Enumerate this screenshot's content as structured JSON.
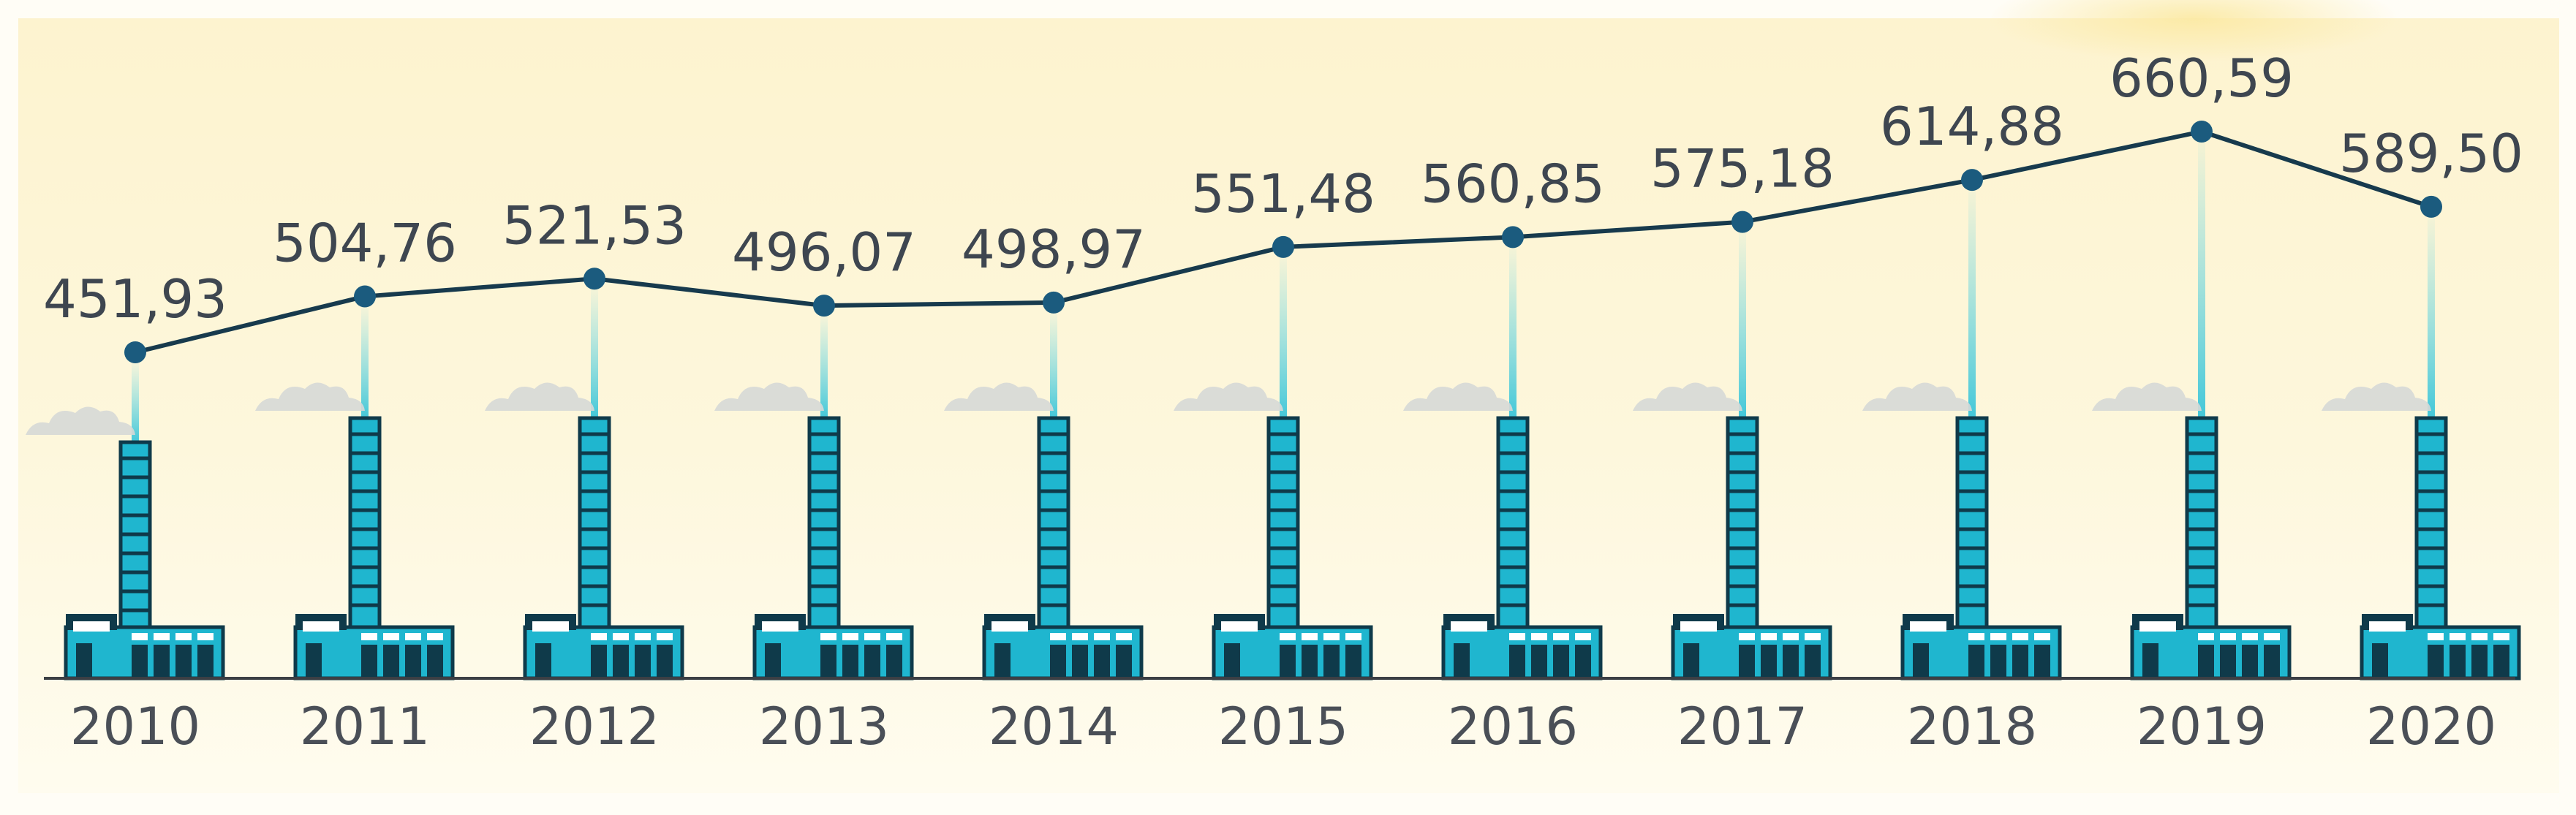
{
  "chart_data": {
    "type": "line",
    "categories": [
      "2010",
      "2011",
      "2012",
      "2013",
      "2014",
      "2015",
      "2016",
      "2017",
      "2018",
      "2019",
      "2020"
    ],
    "values": [
      451.93,
      504.76,
      521.53,
      496.07,
      498.97,
      551.48,
      560.85,
      575.18,
      614.88,
      660.59,
      589.5
    ],
    "value_labels": [
      "451,93",
      "504,76",
      "521,53",
      "496,07",
      "498,97",
      "551,48",
      "560,85",
      "575,18",
      "614,88",
      "660,59",
      "589,50"
    ],
    "title": "",
    "xlabel": "",
    "ylabel": "",
    "grid": false,
    "legend": "none",
    "colors": {
      "line": "#173a4d",
      "marker": "#1b5b7e",
      "factory": "#1fb6cf",
      "factory_dark": "#0f3a4a",
      "background_top": "#fdf5d3",
      "background_bottom": "#fffbe9",
      "smoke": "#d6d8d6"
    },
    "icon": "factory-chimney-icon"
  }
}
